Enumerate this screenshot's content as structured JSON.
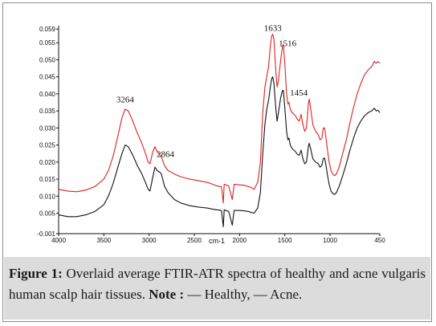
{
  "figure": {
    "caption_label": "Figure 1:",
    "caption_text": " Overlaid average FTIR-ATR spectra of healthy and acne vulgaris human scalp hair tissues. ",
    "note_label": "Note :",
    "note_text": " — Healthy, — Acne."
  },
  "chart_data": {
    "type": "line",
    "xlabel": "cm-1",
    "ylabel": "",
    "xlim": [
      4000,
      450
    ],
    "ylim": [
      -0.001,
      0.06
    ],
    "x_reversed": true,
    "grid": false,
    "x_ticks": [
      {
        "value": 4000,
        "label": "4000"
      },
      {
        "value": 3500,
        "label": "3500"
      },
      {
        "value": 3000,
        "label": "3000"
      },
      {
        "value": 2500,
        "label": "2500"
      },
      {
        "value": 2000,
        "label": "2000"
      },
      {
        "value": 1500,
        "label": "1500"
      },
      {
        "value": 1000,
        "label": "1000"
      },
      {
        "value": 450,
        "label": "450"
      }
    ],
    "y_ticks": [
      {
        "value": -0.001,
        "label": "-0.001"
      },
      {
        "value": 0.005,
        "label": "0.005"
      },
      {
        "value": 0.01,
        "label": "0.010"
      },
      {
        "value": 0.015,
        "label": "0.015"
      },
      {
        "value": 0.02,
        "label": "0.020"
      },
      {
        "value": 0.025,
        "label": "0.025"
      },
      {
        "value": 0.03,
        "label": "0.030"
      },
      {
        "value": 0.035,
        "label": "0.035"
      },
      {
        "value": 0.04,
        "label": "0.040"
      },
      {
        "value": 0.045,
        "label": "0.045"
      },
      {
        "value": 0.05,
        "label": "0.050"
      },
      {
        "value": 0.055,
        "label": "0.055"
      },
      {
        "value": 0.059,
        "label": "0.059"
      }
    ],
    "annotations": [
      {
        "label": "3264",
        "x": 3264,
        "y": 0.0375
      },
      {
        "label": "2864",
        "x": 2820,
        "y": 0.0215
      },
      {
        "label": "1633",
        "x": 1633,
        "y": 0.0585
      },
      {
        "label": "1516",
        "x": 1470,
        "y": 0.054
      },
      {
        "label": "1454",
        "x": 1345,
        "y": 0.0395
      }
    ],
    "series": [
      {
        "name": "Acne",
        "color": "#e02020",
        "points": [
          [
            4000,
            0.012
          ],
          [
            3900,
            0.0115
          ],
          [
            3800,
            0.0113
          ],
          [
            3700,
            0.0118
          ],
          [
            3600,
            0.0128
          ],
          [
            3500,
            0.015
          ],
          [
            3450,
            0.0175
          ],
          [
            3400,
            0.0215
          ],
          [
            3350,
            0.027
          ],
          [
            3300,
            0.033
          ],
          [
            3264,
            0.0355
          ],
          [
            3230,
            0.035
          ],
          [
            3180,
            0.032
          ],
          [
            3130,
            0.0285
          ],
          [
            3080,
            0.0255
          ],
          [
            3040,
            0.0225
          ],
          [
            3010,
            0.02
          ],
          [
            2990,
            0.0195
          ],
          [
            2960,
            0.023
          ],
          [
            2935,
            0.0245
          ],
          [
            2910,
            0.023
          ],
          [
            2880,
            0.022
          ],
          [
            2864,
            0.0215
          ],
          [
            2830,
            0.019
          ],
          [
            2790,
            0.0175
          ],
          [
            2720,
            0.0165
          ],
          [
            2650,
            0.0157
          ],
          [
            2550,
            0.015
          ],
          [
            2450,
            0.0145
          ],
          [
            2350,
            0.014
          ],
          [
            2300,
            0.0135
          ],
          [
            2250,
            0.013
          ],
          [
            2200,
            0.0128
          ],
          [
            2180,
            0.008
          ],
          [
            2170,
            0.0135
          ],
          [
            2120,
            0.013
          ],
          [
            2080,
            0.009
          ],
          [
            2060,
            0.0135
          ],
          [
            2000,
            0.0133
          ],
          [
            1950,
            0.0132
          ],
          [
            1900,
            0.0128
          ],
          [
            1870,
            0.0125
          ],
          [
            1840,
            0.012
          ],
          [
            1800,
            0.014
          ],
          [
            1770,
            0.02
          ],
          [
            1745,
            0.034
          ],
          [
            1720,
            0.042
          ],
          [
            1700,
            0.045
          ],
          [
            1680,
            0.048
          ],
          [
            1660,
            0.054
          ],
          [
            1645,
            0.057
          ],
          [
            1633,
            0.0575
          ],
          [
            1620,
            0.056
          ],
          [
            1600,
            0.047
          ],
          [
            1585,
            0.042
          ],
          [
            1570,
            0.044
          ],
          [
            1545,
            0.05
          ],
          [
            1525,
            0.054
          ],
          [
            1516,
            0.0545
          ],
          [
            1500,
            0.049
          ],
          [
            1480,
            0.04
          ],
          [
            1465,
            0.037
          ],
          [
            1454,
            0.0375
          ],
          [
            1440,
            0.0355
          ],
          [
            1420,
            0.0345
          ],
          [
            1400,
            0.034
          ],
          [
            1380,
            0.0335
          ],
          [
            1360,
            0.0325
          ],
          [
            1340,
            0.032
          ],
          [
            1320,
            0.034
          ],
          [
            1300,
            0.031
          ],
          [
            1280,
            0.029
          ],
          [
            1260,
            0.03
          ],
          [
            1240,
            0.037
          ],
          [
            1230,
            0.0385
          ],
          [
            1215,
            0.036
          ],
          [
            1190,
            0.031
          ],
          [
            1160,
            0.029
          ],
          [
            1130,
            0.028
          ],
          [
            1110,
            0.0265
          ],
          [
            1090,
            0.027
          ],
          [
            1075,
            0.03
          ],
          [
            1060,
            0.03
          ],
          [
            1045,
            0.027
          ],
          [
            1030,
            0.024
          ],
          [
            1010,
            0.02
          ],
          [
            990,
            0.0175
          ],
          [
            970,
            0.0165
          ],
          [
            950,
            0.016
          ],
          [
            930,
            0.0165
          ],
          [
            900,
            0.0185
          ],
          [
            860,
            0.0225
          ],
          [
            820,
            0.0265
          ],
          [
            780,
            0.0315
          ],
          [
            740,
            0.036
          ],
          [
            700,
            0.04
          ],
          [
            660,
            0.043
          ],
          [
            620,
            0.0455
          ],
          [
            580,
            0.047
          ],
          [
            540,
            0.048
          ],
          [
            510,
            0.0495
          ],
          [
            490,
            0.049
          ],
          [
            470,
            0.0495
          ],
          [
            450,
            0.049
          ]
        ]
      },
      {
        "name": "Healthy",
        "color": "#111111",
        "points": [
          [
            4000,
            0.0045
          ],
          [
            3900,
            0.004
          ],
          [
            3800,
            0.004
          ],
          [
            3700,
            0.0045
          ],
          [
            3600,
            0.0055
          ],
          [
            3500,
            0.0075
          ],
          [
            3450,
            0.01
          ],
          [
            3400,
            0.0135
          ],
          [
            3350,
            0.018
          ],
          [
            3300,
            0.0225
          ],
          [
            3264,
            0.025
          ],
          [
            3230,
            0.0245
          ],
          [
            3180,
            0.022
          ],
          [
            3130,
            0.019
          ],
          [
            3080,
            0.0165
          ],
          [
            3040,
            0.014
          ],
          [
            3010,
            0.012
          ],
          [
            2990,
            0.0115
          ],
          [
            2960,
            0.0155
          ],
          [
            2935,
            0.0185
          ],
          [
            2910,
            0.0175
          ],
          [
            2880,
            0.017
          ],
          [
            2864,
            0.0165
          ],
          [
            2830,
            0.013
          ],
          [
            2790,
            0.011
          ],
          [
            2720,
            0.009
          ],
          [
            2650,
            0.008
          ],
          [
            2550,
            0.0072
          ],
          [
            2450,
            0.0068
          ],
          [
            2350,
            0.0065
          ],
          [
            2300,
            0.0062
          ],
          [
            2250,
            0.006
          ],
          [
            2200,
            0.0058
          ],
          [
            2180,
            0.001
          ],
          [
            2170,
            0.006
          ],
          [
            2120,
            0.0055
          ],
          [
            2080,
            0.0015
          ],
          [
            2060,
            0.0058
          ],
          [
            2000,
            0.0058
          ],
          [
            1950,
            0.0057
          ],
          [
            1900,
            0.0055
          ],
          [
            1870,
            0.0052
          ],
          [
            1840,
            0.005
          ],
          [
            1800,
            0.0065
          ],
          [
            1770,
            0.011
          ],
          [
            1745,
            0.022
          ],
          [
            1720,
            0.031
          ],
          [
            1700,
            0.0355
          ],
          [
            1680,
            0.038
          ],
          [
            1660,
            0.042
          ],
          [
            1645,
            0.0445
          ],
          [
            1633,
            0.045
          ],
          [
            1620,
            0.043
          ],
          [
            1600,
            0.036
          ],
          [
            1585,
            0.032
          ],
          [
            1570,
            0.0345
          ],
          [
            1545,
            0.039
          ],
          [
            1525,
            0.041
          ],
          [
            1516,
            0.041
          ],
          [
            1500,
            0.036
          ],
          [
            1480,
            0.029
          ],
          [
            1465,
            0.0265
          ],
          [
            1454,
            0.027
          ],
          [
            1440,
            0.025
          ],
          [
            1420,
            0.024
          ],
          [
            1400,
            0.0235
          ],
          [
            1380,
            0.023
          ],
          [
            1360,
            0.0222
          ],
          [
            1340,
            0.022
          ],
          [
            1320,
            0.0235
          ],
          [
            1300,
            0.021
          ],
          [
            1280,
            0.0195
          ],
          [
            1260,
            0.02
          ],
          [
            1240,
            0.0245
          ],
          [
            1230,
            0.0255
          ],
          [
            1215,
            0.024
          ],
          [
            1190,
            0.021
          ],
          [
            1160,
            0.02
          ],
          [
            1130,
            0.0195
          ],
          [
            1110,
            0.0185
          ],
          [
            1090,
            0.019
          ],
          [
            1075,
            0.021
          ],
          [
            1060,
            0.0212
          ],
          [
            1045,
            0.019
          ],
          [
            1030,
            0.0165
          ],
          [
            1010,
            0.0135
          ],
          [
            990,
            0.0115
          ],
          [
            970,
            0.0108
          ],
          [
            950,
            0.0105
          ],
          [
            930,
            0.011
          ],
          [
            900,
            0.0128
          ],
          [
            860,
            0.016
          ],
          [
            820,
            0.0195
          ],
          [
            780,
            0.0235
          ],
          [
            740,
            0.027
          ],
          [
            700,
            0.03
          ],
          [
            660,
            0.032
          ],
          [
            620,
            0.0335
          ],
          [
            580,
            0.0345
          ],
          [
            540,
            0.035
          ],
          [
            510,
            0.0358
          ],
          [
            490,
            0.035
          ],
          [
            470,
            0.0352
          ],
          [
            450,
            0.0345
          ]
        ]
      }
    ]
  }
}
